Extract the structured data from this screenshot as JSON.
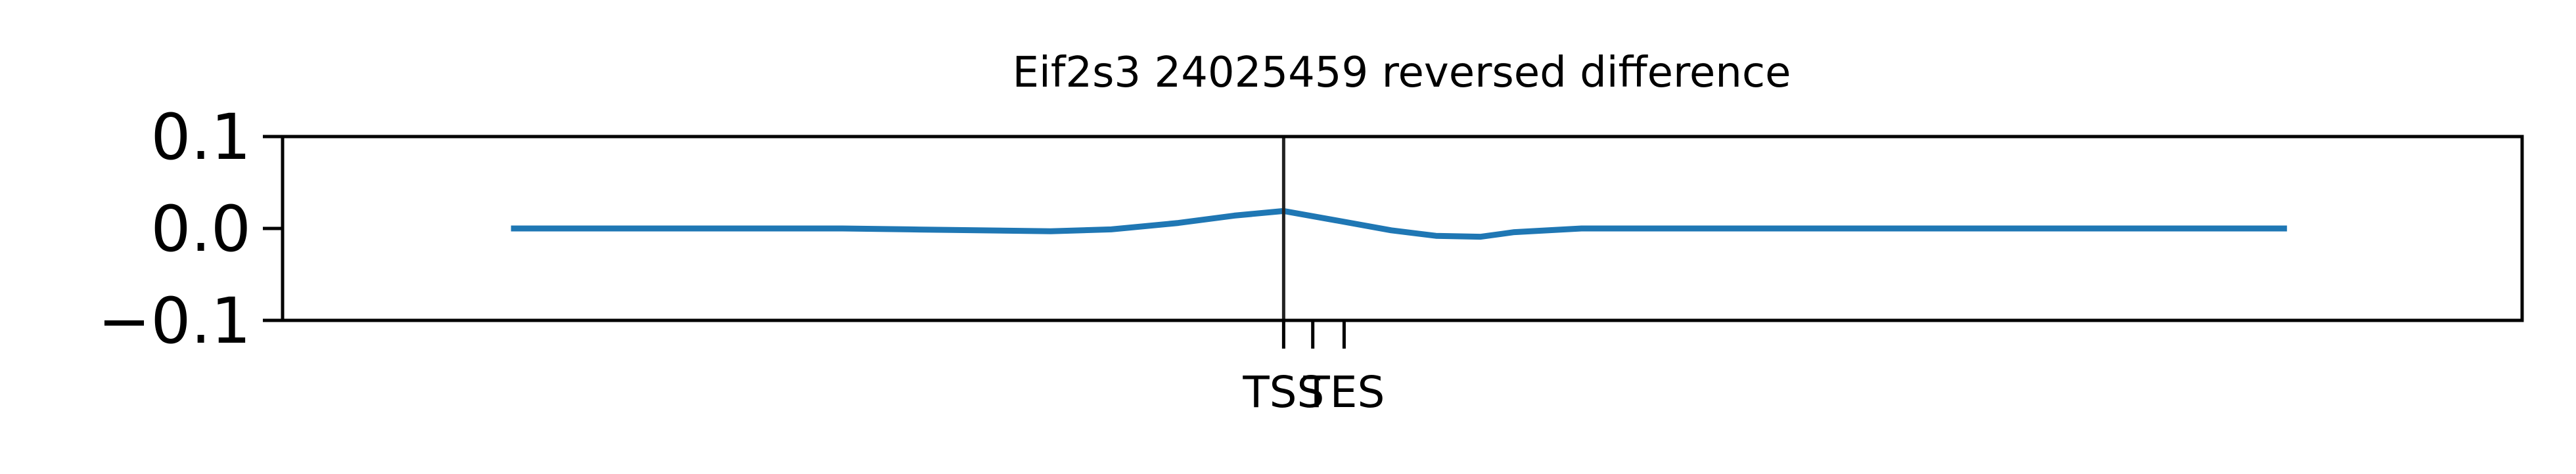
{
  "chart_data": {
    "type": "line",
    "title": "Eif2s3 24025459 reversed difference",
    "xlabel": "",
    "ylabel": "",
    "ylim": [
      -0.1,
      0.1
    ],
    "xlim": [
      -0.5,
      9.5
    ],
    "yticks": [
      {
        "value": 0.1,
        "label": "0.1"
      },
      {
        "value": 0.0,
        "label": "0.0"
      },
      {
        "value": -0.1,
        "label": "−0.1"
      }
    ],
    "xticks": [
      {
        "value": 3.97,
        "label": "TSS"
      },
      {
        "value": 4.1,
        "label": ""
      },
      {
        "value": 4.24,
        "label": "TES"
      }
    ],
    "vlines": [
      {
        "x": 3.97,
        "color": "#222222"
      }
    ],
    "grid": false,
    "colors": {
      "series": "#1f77b4",
      "axes": "#000000"
    },
    "series": [
      {
        "name": "",
        "x": [
          0.52,
          1.0,
          1.5,
          2.0,
          2.3,
          2.6,
          2.93,
          3.2,
          3.5,
          3.75,
          3.97,
          4.2,
          4.45,
          4.65,
          4.85,
          5.0,
          5.3,
          6.0,
          7.0,
          8.0,
          8.45
        ],
        "y": [
          0.0,
          0.0,
          0.0,
          0.0,
          -0.001,
          -0.002,
          -0.003,
          -0.001,
          0.006,
          0.014,
          0.019,
          0.009,
          -0.002,
          -0.008,
          -0.009,
          -0.004,
          0.0,
          0.0,
          0.0,
          0.0,
          0.0
        ]
      }
    ]
  }
}
